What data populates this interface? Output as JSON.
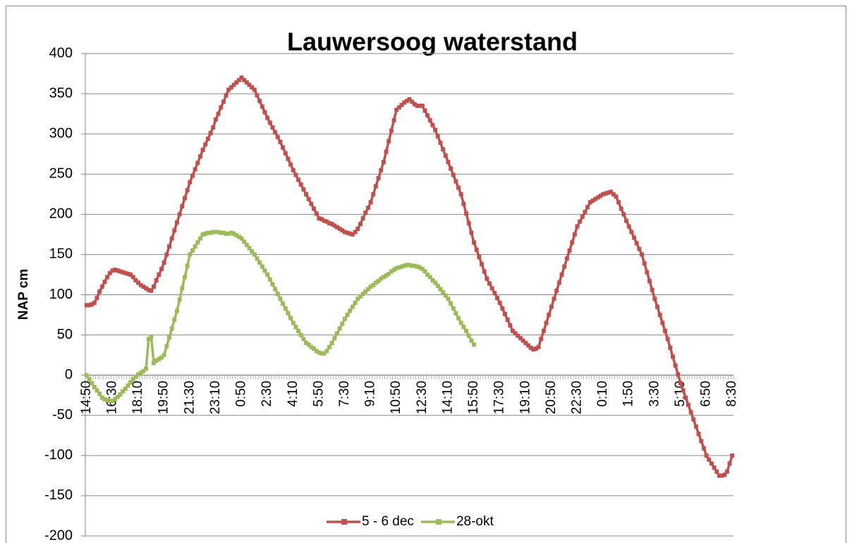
{
  "chart_data": {
    "type": "line",
    "title": "Lauwersoog waterstand",
    "y_label": "NAP cm",
    "categories": [
      "14:50",
      null,
      null,
      null,
      null,
      null,
      null,
      null,
      null,
      null,
      "16:30",
      null,
      null,
      null,
      null,
      null,
      null,
      null,
      null,
      null,
      "18:10",
      null,
      null,
      null,
      null,
      null,
      null,
      null,
      null,
      null,
      "19:50",
      null,
      null,
      null,
      null,
      null,
      null,
      null,
      null,
      null,
      "21:30",
      null,
      null,
      null,
      null,
      null,
      null,
      null,
      null,
      null,
      "23:10",
      null,
      null,
      null,
      null,
      null,
      null,
      null,
      null,
      null,
      "0:50",
      null,
      null,
      null,
      null,
      null,
      null,
      null,
      null,
      null,
      "2:30",
      null,
      null,
      null,
      null,
      null,
      null,
      null,
      null,
      null,
      "4:10",
      null,
      null,
      null,
      null,
      null,
      null,
      null,
      null,
      null,
      "5:50",
      null,
      null,
      null,
      null,
      null,
      null,
      null,
      null,
      null,
      "7:30",
      null,
      null,
      null,
      null,
      null,
      null,
      null,
      null,
      null,
      "9:10",
      null,
      null,
      null,
      null,
      null,
      null,
      null,
      null,
      null,
      "10:50",
      null,
      null,
      null,
      null,
      null,
      null,
      null,
      null,
      null,
      "12:30",
      null,
      null,
      null,
      null,
      null,
      null,
      null,
      null,
      null,
      "14:10",
      null,
      null,
      null,
      null,
      null,
      null,
      null,
      null,
      null,
      "15:50",
      null,
      null,
      null,
      null,
      null,
      null,
      null,
      null,
      null,
      "17:30",
      null,
      null,
      null,
      null,
      null,
      null,
      null,
      null,
      null,
      "19:10",
      null,
      null,
      null,
      null,
      null,
      null,
      null,
      null,
      null,
      "20:50",
      null,
      null,
      null,
      null,
      null,
      null,
      null,
      null,
      null,
      "22:30",
      null,
      null,
      null,
      null,
      null,
      null,
      null,
      null,
      null,
      "0:10",
      null,
      null,
      null,
      null,
      null,
      null,
      null,
      null,
      null,
      "1:50",
      null,
      null,
      null,
      null,
      null,
      null,
      null,
      null,
      null,
      "3:30",
      null,
      null,
      null,
      null,
      null,
      null,
      null,
      null,
      null,
      "5:10",
      null,
      null,
      null,
      null,
      null,
      null,
      null,
      null,
      null,
      "6:50",
      null,
      null,
      null,
      null,
      null,
      null,
      null,
      null,
      null,
      "8:30"
    ],
    "series": [
      {
        "name": "5 - 6 dec",
        "color": "#c0504d",
        "values": [
          87,
          87,
          88,
          90,
          96,
          104,
          110,
          116,
          122,
          127,
          130,
          131,
          130,
          129,
          128,
          127,
          126,
          125,
          122,
          118,
          115,
          112,
          110,
          108,
          106,
          105,
          110,
          118,
          125,
          132,
          140,
          150,
          160,
          170,
          180,
          190,
          200,
          210,
          220,
          230,
          240,
          248,
          256,
          264,
          272,
          280,
          287,
          294,
          301,
          308,
          318,
          325,
          333,
          340,
          348,
          355,
          358,
          361,
          364,
          367,
          370,
          367,
          364,
          361,
          358,
          355,
          348,
          341,
          334,
          327,
          320,
          314,
          308,
          302,
          296,
          290,
          283,
          276,
          269,
          262,
          255,
          249,
          243,
          237,
          231,
          225,
          219,
          213,
          207,
          201,
          195,
          194,
          192,
          191,
          189,
          188,
          186,
          184,
          182,
          180,
          178,
          177,
          176,
          175,
          178,
          182,
          188,
          195,
          202,
          208,
          215,
          225,
          235,
          245,
          255,
          265,
          278,
          291,
          304,
          317,
          330,
          333,
          336,
          339,
          341,
          343,
          340,
          337,
          335,
          335,
          335,
          329,
          323,
          317,
          311,
          305,
          297,
          289,
          281,
          273,
          265,
          257,
          249,
          241,
          233,
          225,
          213,
          201,
          189,
          177,
          165,
          156,
          147,
          138,
          129,
          120,
          114,
          108,
          102,
          96,
          90,
          83,
          76,
          69,
          62,
          55,
          52,
          49,
          46,
          43,
          40,
          37,
          34,
          32,
          33,
          35,
          45,
          55,
          65,
          75,
          85,
          95,
          105,
          115,
          125,
          135,
          145,
          155,
          165,
          175,
          185,
          191,
          197,
          203,
          209,
          215,
          217,
          219,
          221,
          223,
          225,
          226,
          227,
          228,
          225,
          222,
          215,
          207,
          200,
          192,
          185,
          178,
          171,
          164,
          157,
          150,
          139,
          128,
          117,
          106,
          95,
          85,
          75,
          65,
          55,
          45,
          34,
          23,
          12,
          1,
          -10,
          -19,
          -28,
          -37,
          -46,
          -55,
          -64,
          -73,
          -82,
          -91,
          -100,
          -105,
          -110,
          -115,
          -120,
          -125,
          -125,
          -124,
          -120,
          -110,
          -100
        ]
      },
      {
        "name": "28-okt",
        "color": "#9bbb59",
        "values": [
          0,
          -5,
          -10,
          -15,
          -19,
          -23,
          -28,
          -30,
          -31,
          -32,
          -32,
          -30,
          -27,
          -24,
          -20,
          -17,
          -13,
          -9,
          -5,
          -2,
          1,
          3,
          5,
          8,
          45,
          48,
          15,
          18,
          20,
          22,
          25,
          36,
          47,
          58,
          69,
          80,
          94,
          108,
          122,
          136,
          150,
          155,
          160,
          165,
          170,
          175,
          176,
          177,
          177,
          178,
          178,
          178,
          177,
          177,
          176,
          176,
          177,
          176,
          174,
          172,
          170,
          166,
          162,
          158,
          154,
          150,
          145,
          140,
          135,
          130,
          125,
          119,
          113,
          107,
          101,
          95,
          89,
          83,
          77,
          71,
          65,
          60,
          55,
          50,
          45,
          40,
          38,
          35,
          33,
          30,
          28,
          27,
          27,
          30,
          35,
          40,
          46,
          52,
          58,
          64,
          70,
          75,
          80,
          85,
          90,
          95,
          98,
          101,
          104,
          107,
          110,
          112,
          115,
          117,
          120,
          122,
          124,
          126,
          129,
          131,
          133,
          134,
          135,
          136,
          137,
          137,
          136,
          136,
          135,
          134,
          132,
          129,
          125,
          122,
          118,
          115,
          111,
          107,
          103,
          99,
          95,
          89,
          83,
          77,
          71,
          65,
          60,
          55,
          49,
          43,
          38,
          null,
          null,
          null,
          null,
          null,
          null,
          null,
          null,
          null,
          null,
          null,
          null,
          null,
          null,
          null,
          null,
          null,
          null,
          null,
          null,
          null,
          null,
          null,
          null,
          null,
          null,
          null,
          null,
          null,
          null,
          null,
          null,
          null,
          null,
          null,
          null,
          null,
          null,
          null,
          null,
          null,
          null,
          null,
          null,
          null,
          null,
          null,
          null,
          null,
          null,
          null,
          null,
          null,
          null,
          null,
          null,
          null,
          null,
          null,
          null,
          null,
          null,
          null,
          null,
          null,
          null,
          null,
          null,
          null,
          null,
          null,
          null,
          null,
          null,
          null,
          null,
          null,
          null,
          null,
          null,
          null,
          null,
          null,
          null,
          null,
          null,
          null,
          null,
          null,
          null,
          null,
          null,
          null,
          null,
          null,
          null,
          null,
          null,
          null,
          null
        ]
      }
    ],
    "ylim": [
      -200,
      400
    ],
    "yticks": [
      -200,
      -150,
      -100,
      -50,
      0,
      50,
      100,
      150,
      200,
      250,
      300,
      350,
      400
    ],
    "grid": true,
    "legend": "bottom"
  }
}
